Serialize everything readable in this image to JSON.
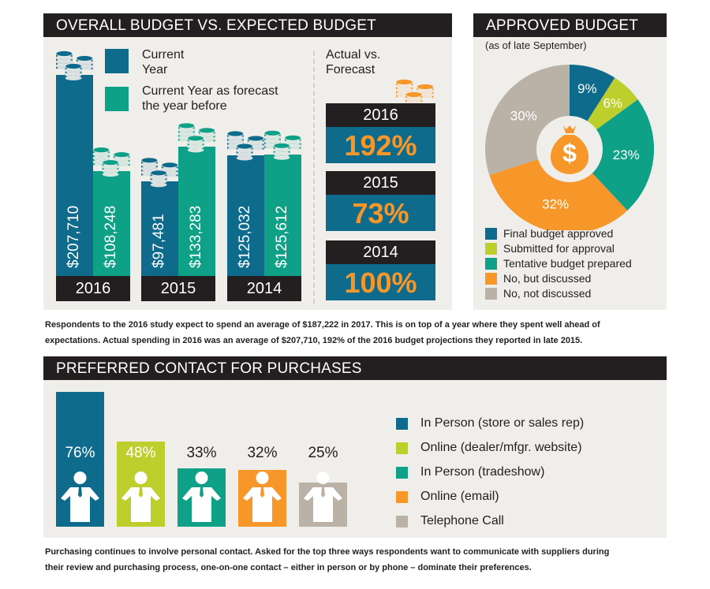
{
  "colors": {
    "blue": "#0e6b8c",
    "teal": "#0fa088",
    "lime": "#bccf2c",
    "orange": "#f7972a",
    "gray": "#bab2a7",
    "dark": "#231f20",
    "panel": "#efeeea"
  },
  "chart_data": [
    {
      "type": "bar",
      "title": "OVERALL BUDGET VS. EXPECTED BUDGET",
      "categories": [
        "2016",
        "2015",
        "2014"
      ],
      "series": [
        {
          "name": "Current Year",
          "values": [
            207710,
            97481,
            125032
          ],
          "labels": [
            "$207,710",
            "$97,481",
            "$125,032"
          ],
          "color": "#0e6b8c"
        },
        {
          "name": "Current Year as forecast the year before",
          "values": [
            108248,
            133283,
            125612
          ],
          "labels": [
            "$108,248",
            "$133,283",
            "$125,612"
          ],
          "color": "#0fa088"
        }
      ],
      "legend": {
        "current_line1": "Current",
        "current_line2": "Year",
        "forecast_line1": "Current Year as forecast",
        "forecast_line2": "the year before"
      },
      "icon": "coin-stack-icon"
    },
    {
      "type": "table",
      "title_line1": "Actual vs.",
      "title_line2": "Forecast",
      "rows": [
        {
          "year": "2016",
          "value": "192%"
        },
        {
          "year": "2015",
          "value": "73%"
        },
        {
          "year": "2014",
          "value": "100%"
        }
      ]
    },
    {
      "type": "pie",
      "title": "APPROVED BUDGET",
      "subtitle": "(as of late September)",
      "slices": [
        {
          "name": "Final budget approved",
          "value": 9,
          "label": "9%",
          "color": "#0e6b8c"
        },
        {
          "name": "Submitted for approval",
          "value": 6,
          "label": "6%",
          "color": "#bccf2c"
        },
        {
          "name": "Tentative budget prepared",
          "value": 23,
          "label": "23%",
          "color": "#0fa088"
        },
        {
          "name": "No, but discussed",
          "value": 32,
          "label": "32%",
          "color": "#f7972a"
        },
        {
          "name": "No, not discussed",
          "value": 30,
          "label": "30%",
          "color": "#bab2a7"
        }
      ],
      "center_icon": "money-bag-icon",
      "legend_placement": "bottom"
    },
    {
      "type": "bar",
      "title": "PREFERRED CONTACT FOR PURCHASES",
      "categories": [
        "In Person (store or sales rep)",
        "Online (dealer/mfgr. website)",
        "In Person (tradeshow)",
        "Online (email)",
        "Telephone Call"
      ],
      "values": [
        76,
        48,
        33,
        32,
        25
      ],
      "labels": [
        "76%",
        "48%",
        "33%",
        "32%",
        "25%"
      ],
      "colors": [
        "#0e6b8c",
        "#bccf2c",
        "#0fa088",
        "#f7972a",
        "#bab2a7"
      ],
      "icon": "person-icon",
      "legend_placement": "right"
    }
  ],
  "paragraphs": {
    "budget_line1": "Respondents to the 2016 study expect to spend an average of $187,222 in 2017.  This is on top of a year where they spent well ahead of",
    "budget_line2": "expectations.  Actual spending in 2016 was an average of $207,710, 192% of the 2016 budget projections they reported in late 2015.",
    "contact_line1": "Purchasing continues to involve personal contact.  Asked for the top three ways respondents want to communicate with suppliers during",
    "contact_line2": "their review and purchasing process, one-on-one contact – either in person or by phone – dominate their preferences."
  }
}
